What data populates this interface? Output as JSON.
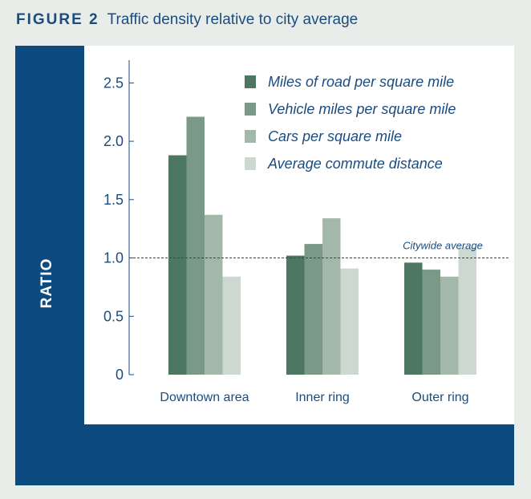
{
  "figure": {
    "label": "FIGURE 2",
    "title": "Traffic density relative to city average"
  },
  "colors": {
    "frame": "#0d4a80",
    "text": "#1b4c7f",
    "series": [
      "#4e7762",
      "#7a9a87",
      "#a4b8aa",
      "#ccd8d0"
    ]
  },
  "chart_data": {
    "type": "bar",
    "title": "Traffic density relative to city average",
    "ylabel": "RATIO",
    "xlabel": "",
    "ylim": [
      0,
      2.75
    ],
    "yticks": [
      0,
      0.5,
      1.0,
      1.5,
      2.0,
      2.5
    ],
    "ytick_labels": [
      "0",
      "0.5",
      "1.0",
      "1.5",
      "2.0",
      "2.5"
    ],
    "categories": [
      "Downtown area",
      "Inner ring",
      "Outer ring"
    ],
    "series": [
      {
        "name": "Miles of road per square  mile",
        "values": [
          1.88,
          1.02,
          0.96
        ]
      },
      {
        "name": "Vehicle miles per square mile",
        "values": [
          2.21,
          1.12,
          0.9
        ]
      },
      {
        "name": "Cars per square mile",
        "values": [
          1.37,
          1.34,
          0.84
        ]
      },
      {
        "name": "Average commute distance",
        "values": [
          0.84,
          0.91,
          1.09
        ]
      }
    ],
    "reference_line": {
      "value": 1.0,
      "label": "Citywide average",
      "style": "dashed"
    },
    "legend_position": "top-right",
    "grid": false
  }
}
